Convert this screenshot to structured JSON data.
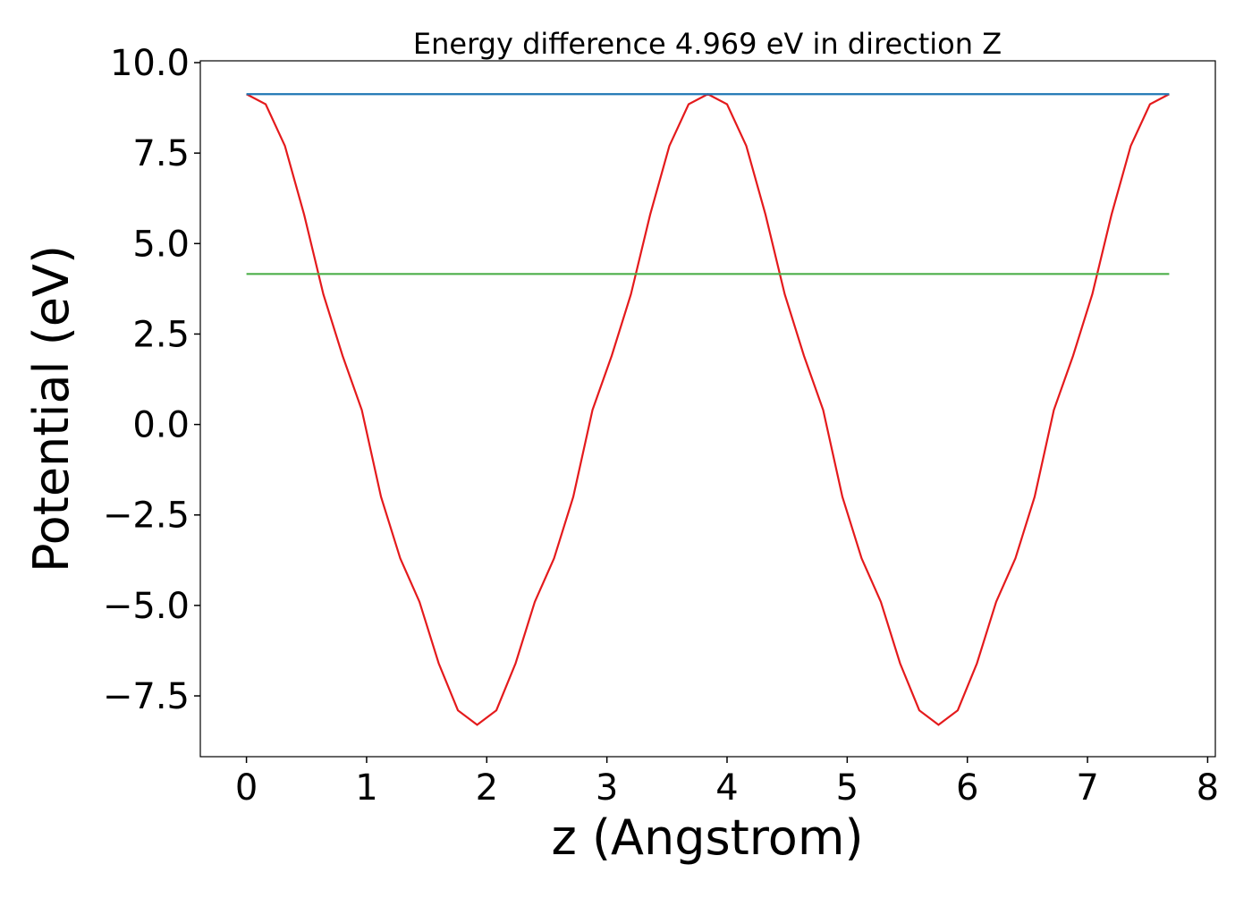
{
  "chart_data": {
    "type": "line",
    "title": "Energy difference 4.969 eV in direction Z",
    "x_label": "z (Angstrom)",
    "y_label": "Potential (eV)",
    "xlim": [
      -0.384,
      8.064
    ],
    "ylim": [
      -9.18,
      10.05
    ],
    "xticks": [
      0,
      1,
      2,
      3,
      4,
      5,
      6,
      7,
      8
    ],
    "yticks": [
      {
        "value": -7.5,
        "label": "−7.5"
      },
      {
        "value": -5,
        "label": "−5.0"
      },
      {
        "value": -2.5,
        "label": "−2.5"
      },
      {
        "value": 0,
        "label": "0.0"
      },
      {
        "value": 2.5,
        "label": "2.5"
      },
      {
        "value": 5,
        "label": "5.0"
      },
      {
        "value": 7.5,
        "label": "7.5"
      },
      {
        "value": 10,
        "label": "10.0"
      }
    ],
    "grid": false,
    "series": [
      {
        "color": "#e41a1c",
        "x": [
          0,
          0.16,
          0.32,
          0.48,
          0.64,
          0.8,
          0.96,
          1.12,
          1.28,
          1.44,
          1.6,
          1.76,
          1.92,
          2.08,
          2.24,
          2.4,
          2.56,
          2.72,
          2.88,
          3.04,
          3.2,
          3.36,
          3.52,
          3.68,
          3.84,
          4.0,
          4.16,
          4.32,
          4.48,
          4.64,
          4.8,
          4.96,
          5.12,
          5.28,
          5.44,
          5.6,
          5.76,
          5.92,
          6.08,
          6.24,
          6.4,
          6.56,
          6.72,
          6.88,
          7.04,
          7.2,
          7.36,
          7.52,
          7.68
        ],
        "values": [
          9.13,
          8.85,
          7.7,
          5.8,
          3.6,
          1.9,
          0.4,
          -2.0,
          -3.7,
          -4.9,
          -6.6,
          -7.9,
          -8.3,
          -7.9,
          -6.6,
          -4.9,
          -3.7,
          -2.0,
          0.4,
          1.9,
          3.6,
          5.8,
          7.7,
          8.85,
          9.13,
          8.85,
          7.7,
          5.8,
          3.6,
          1.9,
          0.4,
          -2.0,
          -3.7,
          -4.9,
          -6.6,
          -7.9,
          -8.3,
          -7.9,
          -6.6,
          -4.9,
          -3.7,
          -2.0,
          0.4,
          1.9,
          3.6,
          5.8,
          7.7,
          8.85,
          9.13
        ]
      },
      {
        "color": "#1f77b4",
        "x": [
          0,
          7.68
        ],
        "values": [
          9.13,
          9.13
        ]
      },
      {
        "color": "#4daf4a",
        "x": [
          0,
          7.68
        ],
        "values": [
          4.16,
          4.16
        ]
      }
    ]
  }
}
